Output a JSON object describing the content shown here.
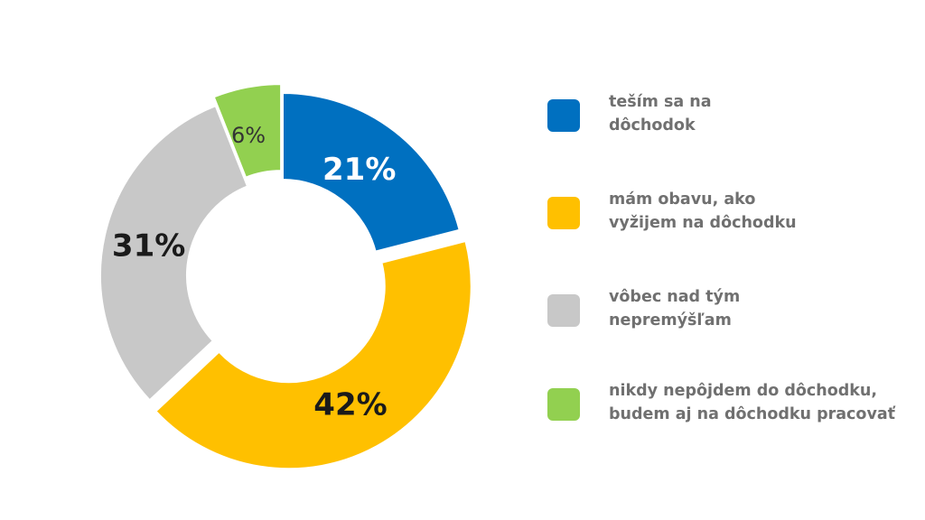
{
  "chart_data": {
    "type": "pie",
    "donut": true,
    "categories": [
      "teším sa na\ndôchodok",
      "mám obavu, ako\nvyžijem na dôchodku",
      "vôbec nad tým\nnepremýšľam",
      "nikdy nepôjdem do dôchodku,\nbudem aj na dôchodku pracovať"
    ],
    "values": [
      21,
      42,
      31,
      6
    ],
    "value_labels": [
      "21%",
      "42%",
      "31%",
      "6%"
    ],
    "colors": [
      "#0070C0",
      "#FFC000",
      "#C8C8C8",
      "#92D050"
    ],
    "label_colors": [
      "#ffffff",
      "#1a1a1a",
      "#1a1a1a",
      "#333333"
    ],
    "legend_position": "right",
    "exploded_slices": [
      "42%",
      "6%"
    ]
  }
}
